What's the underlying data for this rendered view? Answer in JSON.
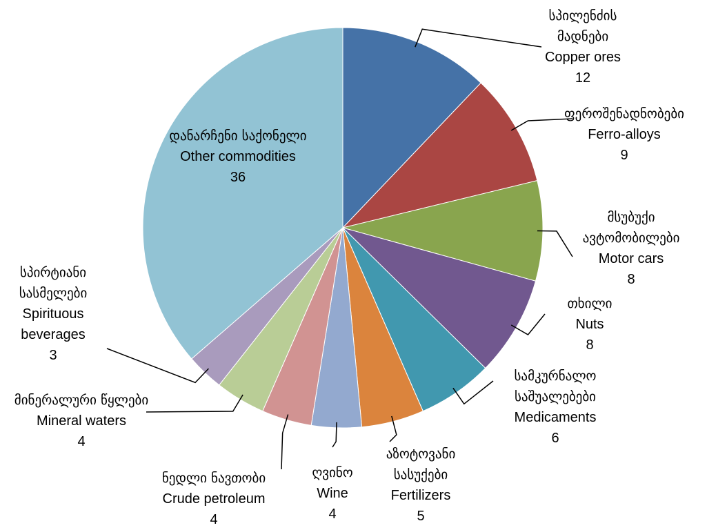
{
  "chart_data": {
    "type": "pie",
    "labels_ka": [
      "სპილენძის მადნები",
      "ფეროშენადნობები",
      "მსუბუქი ავტომობილები",
      "თხილი",
      "სამკურნალო საშუალებები",
      "აზოტოვანი სასუქები",
      "ღვინო",
      "ნედლი ნავთობი",
      "მინერალური წყლები",
      "სპირტიანი სასმელები",
      "დანარჩენი საქონელი"
    ],
    "categories": [
      "Copper ores",
      "Ferro-alloys",
      "Motor cars",
      "Nuts",
      "Medicaments",
      "Fertilizers",
      "Wine",
      "Crude petroleum",
      "Mineral waters",
      "Spirituous beverages",
      "Other commodities"
    ],
    "values": [
      12,
      9,
      8,
      8,
      6,
      5,
      4,
      4,
      4,
      3,
      36
    ],
    "colors": [
      "#4572a7",
      "#aa4643",
      "#89a54e",
      "#71588f",
      "#4198af",
      "#db843d",
      "#93a9cf",
      "#d19392",
      "#b9cd96",
      "#a99bbd",
      "#92c3d4"
    ]
  }
}
